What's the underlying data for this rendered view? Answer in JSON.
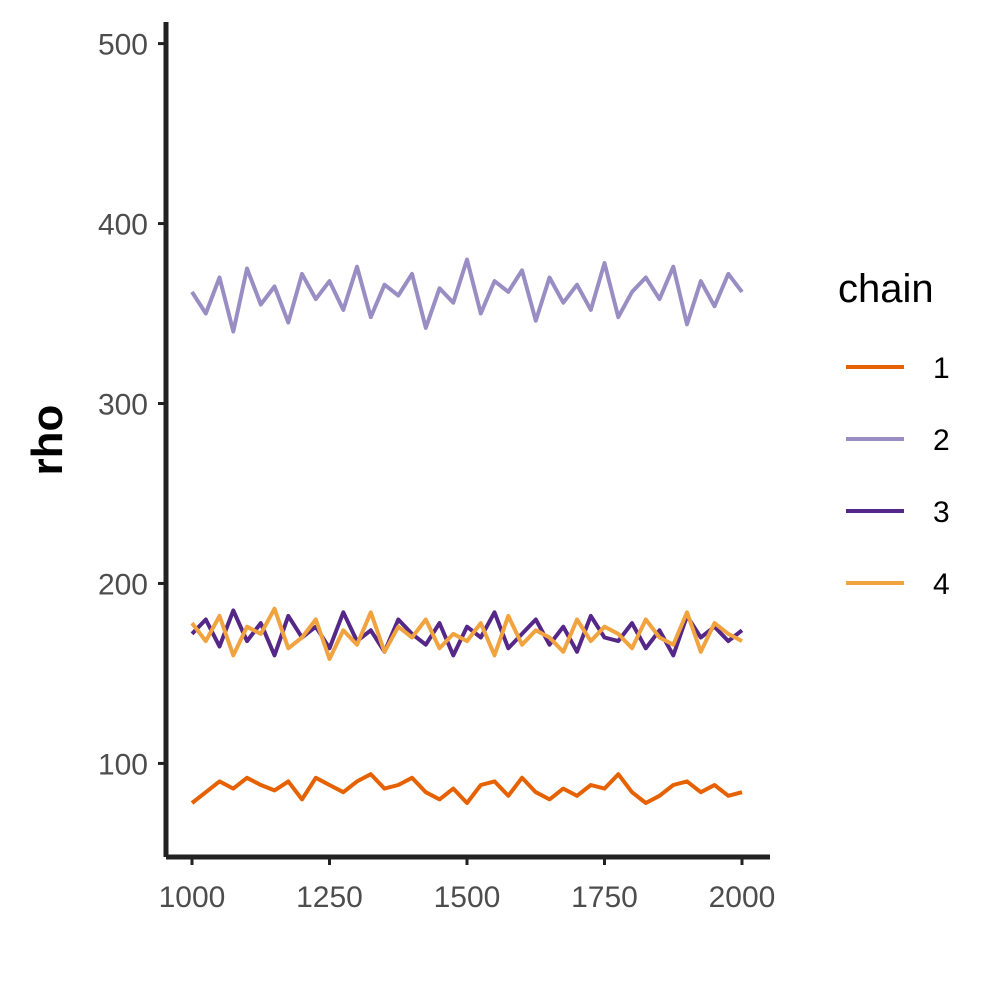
{
  "chart_data": {
    "type": "line",
    "title": "",
    "xlabel": "",
    "ylabel": "rho",
    "xlim": [
      1000,
      2000
    ],
    "ylim": [
      48,
      512
    ],
    "x_ticks": [
      1000,
      1250,
      1500,
      1750,
      2000
    ],
    "y_ticks": [
      100,
      200,
      300,
      400,
      500
    ],
    "grid": false,
    "legend": {
      "title": "chain",
      "position": "right"
    },
    "series": [
      {
        "name": "1",
        "color": "#e66101",
        "x": [
          1000,
          1025,
          1050,
          1075,
          1100,
          1125,
          1150,
          1175,
          1200,
          1225,
          1250,
          1275,
          1300,
          1325,
          1350,
          1375,
          1400,
          1425,
          1450,
          1475,
          1500,
          1525,
          1550,
          1575,
          1600,
          1625,
          1650,
          1675,
          1700,
          1725,
          1750,
          1775,
          1800,
          1825,
          1850,
          1875,
          1900,
          1925,
          1950,
          1975,
          2000
        ],
        "y": [
          78,
          84,
          90,
          86,
          92,
          88,
          85,
          90,
          80,
          92,
          88,
          84,
          90,
          94,
          86,
          88,
          92,
          84,
          80,
          86,
          78,
          88,
          90,
          82,
          92,
          84,
          80,
          86,
          82,
          88,
          86,
          94,
          84,
          78,
          82,
          88,
          90,
          84,
          88,
          82,
          84
        ]
      },
      {
        "name": "2",
        "color": "#998ec3",
        "x": [
          1000,
          1025,
          1050,
          1075,
          1100,
          1125,
          1150,
          1175,
          1200,
          1225,
          1250,
          1275,
          1300,
          1325,
          1350,
          1375,
          1400,
          1425,
          1450,
          1475,
          1500,
          1525,
          1550,
          1575,
          1600,
          1625,
          1650,
          1675,
          1700,
          1725,
          1750,
          1775,
          1800,
          1825,
          1850,
          1875,
          1900,
          1925,
          1950,
          1975,
          2000
        ],
        "y": [
          362,
          350,
          370,
          340,
          375,
          355,
          365,
          345,
          372,
          358,
          368,
          352,
          376,
          348,
          366,
          360,
          372,
          342,
          364,
          356,
          380,
          350,
          368,
          362,
          374,
          346,
          370,
          356,
          366,
          352,
          378,
          348,
          362,
          370,
          358,
          376,
          344,
          368,
          354,
          372,
          362
        ]
      },
      {
        "name": "3",
        "color": "#542788",
        "x": [
          1000,
          1025,
          1050,
          1075,
          1100,
          1125,
          1150,
          1175,
          1200,
          1225,
          1250,
          1275,
          1300,
          1325,
          1350,
          1375,
          1400,
          1425,
          1450,
          1475,
          1500,
          1525,
          1550,
          1575,
          1600,
          1625,
          1650,
          1675,
          1700,
          1725,
          1750,
          1775,
          1800,
          1825,
          1850,
          1875,
          1900,
          1925,
          1950,
          1975,
          2000
        ],
        "y": [
          172,
          180,
          165,
          185,
          168,
          178,
          160,
          182,
          170,
          176,
          164,
          184,
          168,
          174,
          162,
          180,
          172,
          166,
          178,
          160,
          176,
          170,
          184,
          164,
          172,
          180,
          166,
          176,
          162,
          182,
          170,
          168,
          178,
          164,
          174,
          160,
          182,
          170,
          176,
          168,
          174
        ]
      },
      {
        "name": "4",
        "color": "#f1a340",
        "x": [
          1000,
          1025,
          1050,
          1075,
          1100,
          1125,
          1150,
          1175,
          1200,
          1225,
          1250,
          1275,
          1300,
          1325,
          1350,
          1375,
          1400,
          1425,
          1450,
          1475,
          1500,
          1525,
          1550,
          1575,
          1600,
          1625,
          1650,
          1675,
          1700,
          1725,
          1750,
          1775,
          1800,
          1825,
          1850,
          1875,
          1900,
          1925,
          1950,
          1975,
          2000
        ],
        "y": [
          178,
          168,
          182,
          160,
          176,
          172,
          186,
          164,
          170,
          180,
          158,
          174,
          166,
          184,
          162,
          176,
          170,
          180,
          164,
          172,
          168,
          178,
          160,
          182,
          166,
          174,
          170,
          162,
          180,
          168,
          176,
          172,
          164,
          180,
          170,
          166,
          184,
          162,
          178,
          172,
          168
        ]
      }
    ]
  }
}
